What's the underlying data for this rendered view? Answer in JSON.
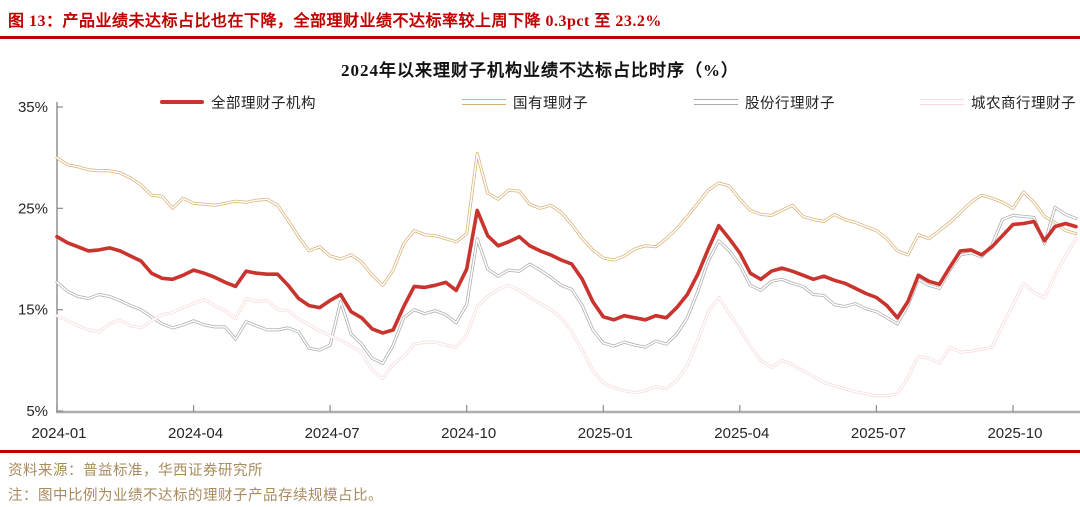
{
  "header": {
    "title": "图 13：产品业绩未达标占比也在下降，全部理财业绩不达标率较上周下降 0.3pct 至 23.2%"
  },
  "colors": {
    "title_red": "#C00000",
    "rule_red": "#C00000",
    "footer_brown": "#A98B5E",
    "axis_spine": "#8A8A8A",
    "axis_baseline": "#ADADAD",
    "series_total_red": "#C9342E",
    "series_state_gold": "#D9B176",
    "series_joint_gray": "#ACACAC",
    "series_rural_pink": "#F8DADA"
  },
  "chart_data": {
    "type": "line",
    "title": "2024年以来理财子机构业绩不达标占比时序（%）",
    "frequency": "weekly",
    "legend_position": "top",
    "grid": false,
    "ylim": [
      5,
      35
    ],
    "y_axis": {
      "ticks": [
        35,
        25,
        15,
        5
      ],
      "tick_labels": [
        "35%",
        "25%",
        "15%",
        "5%"
      ]
    },
    "x_axis": {
      "tick_labels": [
        "2024-01",
        "2024-04",
        "2024-07",
        "2024-10",
        "2025-01",
        "2025-04",
        "2025-07",
        "2025-10"
      ],
      "tick_week_positions": [
        0,
        13,
        26,
        39,
        52,
        65,
        78,
        91
      ],
      "total_weeks": 97
    },
    "series": [
      {
        "name": "全部理财子机构",
        "color": "#C9342E",
        "style": "solid",
        "values": [
          22.2,
          21.6,
          21.2,
          20.8,
          20.9,
          21.1,
          20.8,
          20.3,
          19.8,
          18.6,
          18.1,
          18.0,
          18.4,
          18.9,
          18.6,
          18.2,
          17.7,
          17.3,
          18.8,
          18.6,
          18.5,
          18.5,
          17.4,
          16.1,
          15.4,
          15.2,
          15.9,
          16.5,
          14.8,
          14.2,
          13.1,
          12.7,
          13.0,
          15.3,
          17.3,
          17.2,
          17.4,
          17.7,
          16.9,
          19.0,
          24.8,
          22.3,
          21.3,
          21.7,
          22.2,
          21.3,
          20.8,
          20.4,
          19.9,
          19.5,
          18.0,
          15.8,
          14.3,
          14.0,
          14.4,
          14.2,
          14.0,
          14.4,
          14.2,
          15.2,
          16.5,
          18.5,
          21.0,
          23.3,
          22.0,
          20.6,
          18.6,
          18.0,
          18.8,
          19.1,
          18.8,
          18.4,
          18.0,
          18.3,
          17.9,
          17.6,
          17.1,
          16.6,
          16.2,
          15.4,
          14.2,
          15.8,
          18.4,
          17.8,
          17.5,
          19.2,
          20.8,
          20.9,
          20.4,
          21.2,
          22.3,
          23.4,
          23.5,
          23.7,
          21.8,
          23.2,
          23.5,
          23.2
        ]
      },
      {
        "name": "国有理财子",
        "color": "#D9B176",
        "style": "hollow",
        "values": [
          30.0,
          29.3,
          29.1,
          28.8,
          28.7,
          28.7,
          28.5,
          28.0,
          27.3,
          26.3,
          26.2,
          25.0,
          26.0,
          25.5,
          25.4,
          25.3,
          25.5,
          25.7,
          25.6,
          25.8,
          25.9,
          25.3,
          23.8,
          22.2,
          20.8,
          21.2,
          20.3,
          20.0,
          20.4,
          19.7,
          18.4,
          17.4,
          18.9,
          21.5,
          22.8,
          22.4,
          22.3,
          22.0,
          21.7,
          22.5,
          30.4,
          26.5,
          25.9,
          26.8,
          26.7,
          25.4,
          25.0,
          25.3,
          24.6,
          23.4,
          22.0,
          20.9,
          20.1,
          19.9,
          20.3,
          21.0,
          21.3,
          21.2,
          22.0,
          23.0,
          24.2,
          25.5,
          26.8,
          27.5,
          27.2,
          25.9,
          24.8,
          24.4,
          24.3,
          24.8,
          25.3,
          24.2,
          23.9,
          23.7,
          24.4,
          23.9,
          23.6,
          23.2,
          22.8,
          22.0,
          20.8,
          20.4,
          22.4,
          22.0,
          22.8,
          23.6,
          24.6,
          25.6,
          26.3,
          26.0,
          25.6,
          25.0,
          26.6,
          25.6,
          24.2,
          23.6,
          22.8,
          22.5
        ]
      },
      {
        "name": "股份行理财子",
        "color": "#ACACAC",
        "style": "hollow",
        "values": [
          17.7,
          16.8,
          16.3,
          16.1,
          16.5,
          16.3,
          15.9,
          15.4,
          15.0,
          14.3,
          13.6,
          13.2,
          13.5,
          13.9,
          13.5,
          13.3,
          13.3,
          12.1,
          13.8,
          13.4,
          13.0,
          13.0,
          13.2,
          12.8,
          11.2,
          11.0,
          11.5,
          15.8,
          12.6,
          11.6,
          10.2,
          9.7,
          11.5,
          14.2,
          15.0,
          14.6,
          14.9,
          14.5,
          13.7,
          15.5,
          22.0,
          19.0,
          18.3,
          18.9,
          18.8,
          19.5,
          18.9,
          18.2,
          17.4,
          17.0,
          15.4,
          13.0,
          11.7,
          11.4,
          11.8,
          11.5,
          11.3,
          11.9,
          11.6,
          12.6,
          14.2,
          16.8,
          19.8,
          21.8,
          20.8,
          19.4,
          17.4,
          16.9,
          17.8,
          18.0,
          17.6,
          17.3,
          16.5,
          16.4,
          15.5,
          15.3,
          15.6,
          15.1,
          14.8,
          14.2,
          13.6,
          15.4,
          18.0,
          17.4,
          17.1,
          18.9,
          20.4,
          20.6,
          20.2,
          21.4,
          23.9,
          24.3,
          24.2,
          24.1,
          21.5,
          25.1,
          24.4,
          24.0
        ]
      },
      {
        "name": "城农商行理财子",
        "color": "#F8DADA",
        "style": "hollow",
        "values": [
          14.4,
          13.9,
          13.4,
          13.0,
          12.8,
          13.6,
          14.0,
          13.4,
          13.2,
          13.9,
          14.5,
          14.7,
          15.2,
          15.6,
          16.0,
          15.4,
          14.9,
          14.1,
          16.1,
          15.8,
          15.9,
          15.0,
          14.9,
          14.1,
          13.5,
          12.9,
          12.4,
          12.0,
          11.4,
          10.8,
          9.0,
          8.2,
          9.6,
          10.4,
          11.6,
          11.8,
          11.8,
          11.5,
          11.3,
          12.5,
          15.3,
          16.3,
          17.0,
          17.4,
          16.9,
          16.2,
          15.6,
          15.0,
          14.2,
          12.8,
          11.0,
          9.0,
          7.8,
          7.3,
          7.0,
          6.8,
          7.0,
          7.4,
          7.2,
          8.0,
          9.5,
          12.0,
          14.8,
          16.2,
          14.6,
          13.1,
          11.4,
          10.0,
          9.3,
          10.0,
          9.6,
          9.0,
          8.4,
          7.8,
          7.5,
          7.2,
          6.9,
          6.7,
          6.5,
          6.5,
          6.7,
          8.3,
          10.4,
          10.2,
          9.7,
          11.3,
          10.8,
          10.9,
          11.1,
          11.3,
          13.5,
          15.5,
          17.6,
          16.7,
          16.2,
          18.4,
          20.3,
          22.0
        ]
      }
    ]
  },
  "footer": {
    "source": "资料来源：普益标准，华西证券研究所",
    "note": "注：图中比例为业绩不达标的理财子产品存续规模占比。"
  }
}
